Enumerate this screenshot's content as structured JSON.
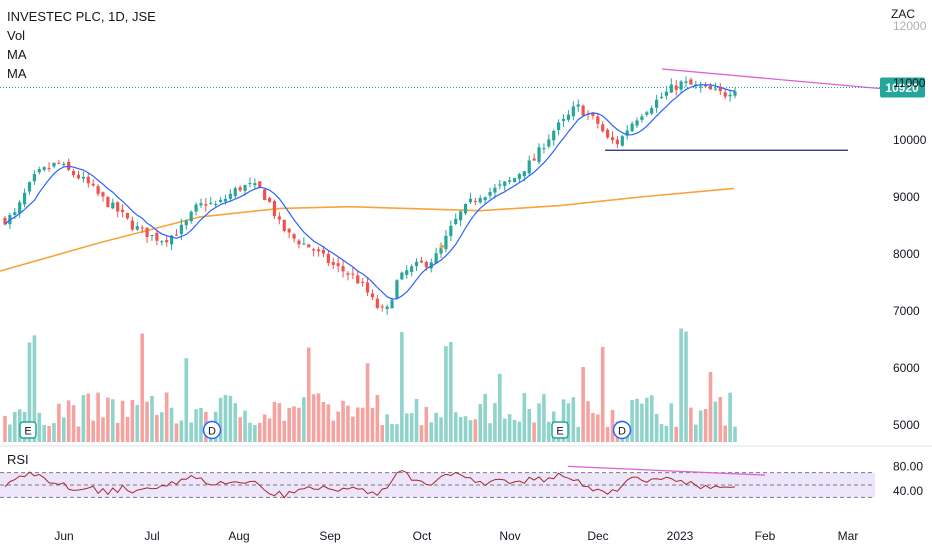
{
  "legend": {
    "symbol_line": "INVESTEC PLC, 1D, JSE",
    "vol_label": "Vol",
    "ma1_label": "MA",
    "ma2_label": "MA"
  },
  "rsi_label": "RSI",
  "currency_label": "ZAC",
  "price_tag": "10920",
  "colors": {
    "up": "#26a69a",
    "down": "#ef5350",
    "vol_up": "#8fd3cb",
    "vol_down": "#f5a3a0",
    "ma_fast": "#2962ff",
    "ma_slow": "#f7a43a",
    "trendline": "#e05fd7",
    "support": "#1e2a6e",
    "rsi_line": "#a32a2a",
    "rsi_band": "#ede6fb",
    "price_tag_bg": "#26a69a"
  },
  "chart_data": {
    "type": "candlestick",
    "y_axis": {
      "min": 4800,
      "max": 12000,
      "ticks": [
        "12000",
        "11000",
        "10000",
        "9000",
        "8000",
        "7000",
        "6000",
        "5000"
      ]
    },
    "rsi_axis": {
      "ticks": [
        "80.00",
        "40.00"
      ],
      "upper_band": 70,
      "lower_band": 30
    },
    "x_labels": [
      "Jun",
      "Jul",
      "Aug",
      "Sep",
      "Oct",
      "Nov",
      "Dec",
      "2023",
      "Feb",
      "Mar"
    ],
    "last_price": 10920,
    "close_series": [
      8600,
      8700,
      9100,
      9400,
      9500,
      9600,
      9450,
      9350,
      9200,
      9000,
      8850,
      8700,
      8500,
      8400,
      8300,
      8250,
      8350,
      8500,
      8800,
      8900,
      8850,
      9000,
      9150,
      9200,
      9150,
      8900,
      8500,
      8300,
      8200,
      8100,
      7950,
      7800,
      7700,
      7600,
      7400,
      7100,
      6950,
      7500,
      7700,
      7800,
      7850,
      8000,
      8400,
      8700,
      8900,
      9050,
      9100,
      9200,
      9300,
      9500,
      9650,
      9950,
      10200,
      10350,
      10600,
      10450,
      10300,
      10000,
      9950,
      10250,
      10450,
      10600,
      10750,
      10900,
      11000,
      10950,
      10900,
      10850,
      10800,
      10920
    ],
    "moving_average_slow_range": [
      7700,
      9150
    ],
    "support_level": 9820,
    "trendline": {
      "start": 11150,
      "end": 10920
    },
    "events": [
      "E",
      "D",
      "E",
      "D"
    ],
    "rsi_trend": "lower highs"
  }
}
